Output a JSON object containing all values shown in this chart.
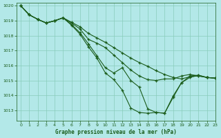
{
  "title": "Graphe pression niveau de la mer (hPa)",
  "bg_color": "#b3e8e8",
  "grid_color": "#88ccbb",
  "line_color": "#1a5c1a",
  "xlim": [
    -0.5,
    23
  ],
  "ylim": [
    1012.3,
    1020.2
  ],
  "yticks": [
    1013,
    1014,
    1015,
    1016,
    1017,
    1018,
    1019,
    1020
  ],
  "xticks": [
    0,
    1,
    2,
    3,
    4,
    5,
    6,
    7,
    8,
    9,
    10,
    11,
    12,
    13,
    14,
    15,
    16,
    17,
    18,
    19,
    20,
    21,
    22,
    23
  ],
  "series": [
    [
      1020.0,
      1019.4,
      1019.1,
      1018.85,
      1019.0,
      1019.2,
      1018.85,
      1018.45,
      1017.75,
      1017.5,
      1017.2,
      1016.7,
      1016.2,
      1015.7,
      1015.3,
      1015.05,
      1015.0,
      1015.1,
      1015.1,
      1015.3,
      1015.4,
      1015.3,
      1015.2,
      1015.15
    ],
    [
      1020.0,
      1019.4,
      1019.1,
      1018.85,
      1019.0,
      1019.2,
      1018.9,
      1018.6,
      1018.15,
      1017.85,
      1017.55,
      1017.2,
      1016.85,
      1016.5,
      1016.2,
      1015.95,
      1015.65,
      1015.4,
      1015.2,
      1015.1,
      1015.25,
      1015.3,
      1015.2,
      1015.15
    ],
    [
      1020.0,
      1019.4,
      1019.1,
      1018.85,
      1019.0,
      1019.2,
      1018.75,
      1018.2,
      1017.45,
      1016.65,
      1015.85,
      1015.5,
      1015.85,
      1015.0,
      1014.55,
      1013.1,
      1012.85,
      1012.8,
      1013.85,
      1014.85,
      1015.2,
      1015.35,
      1015.2,
      1015.15
    ],
    [
      1020.0,
      1019.4,
      1019.1,
      1018.85,
      1019.0,
      1019.2,
      1018.7,
      1018.1,
      1017.25,
      1016.5,
      1015.5,
      1015.05,
      1014.35,
      1013.15,
      1012.85,
      1012.8,
      1012.85,
      1012.8,
      1013.95,
      1014.85,
      1015.3,
      1015.35,
      1015.2,
      1015.15
    ]
  ]
}
